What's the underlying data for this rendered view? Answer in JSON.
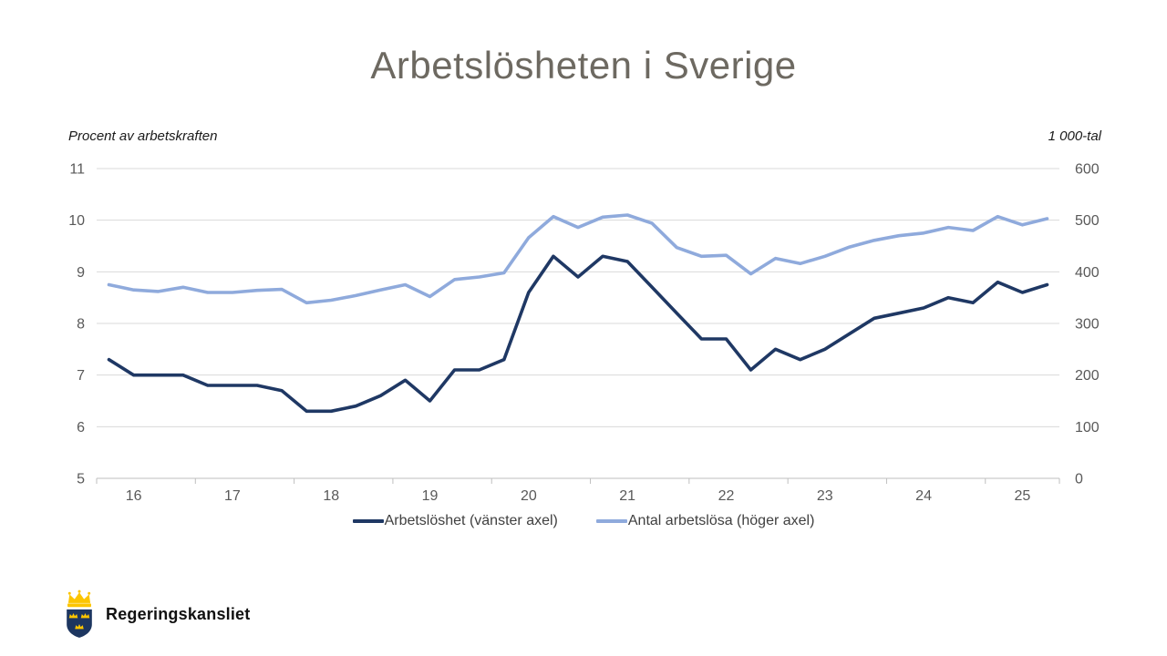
{
  "slide": {
    "title": "Arbetslösheten i Sverige",
    "left_axis_unit": "Procent av arbetskraften",
    "right_axis_unit": "1 000-tal",
    "footer_org": "Regeringskansliet"
  },
  "colors": {
    "series_unemployment_rate": "#1f3864",
    "series_unemployed_count": "#8faadc",
    "title_text": "#6d6961",
    "axis_text": "#595959",
    "gridline": "#d9d9d9",
    "axis_line": "#bfbfbf",
    "logo_navy": "#1d3660",
    "logo_gold": "#fcc500"
  },
  "chart_data": {
    "type": "line",
    "title": "Arbetslösheten i Sverige",
    "grid": true,
    "legend_position": "bottom",
    "x": [
      "2015-Q4",
      "2016-Q1",
      "2016-Q2",
      "2016-Q3",
      "2016-Q4",
      "2017-Q1",
      "2017-Q2",
      "2017-Q3",
      "2017-Q4",
      "2018-Q1",
      "2018-Q2",
      "2018-Q3",
      "2018-Q4",
      "2019-Q1",
      "2019-Q2",
      "2019-Q3",
      "2019-Q4",
      "2020-Q1",
      "2020-Q2",
      "2020-Q3",
      "2020-Q4",
      "2021-Q1",
      "2021-Q2",
      "2021-Q3",
      "2021-Q4",
      "2022-Q1",
      "2022-Q2",
      "2022-Q3",
      "2022-Q4",
      "2023-Q1",
      "2023-Q2",
      "2023-Q3",
      "2023-Q4",
      "2024-Q1",
      "2024-Q2",
      "2024-Q3",
      "2024-Q4",
      "2025-Q1",
      "2025-Q2"
    ],
    "x_year_tick_labels": [
      "16",
      "17",
      "18",
      "19",
      "20",
      "21",
      "22",
      "23",
      "24",
      "25"
    ],
    "x_label_start_index": 1,
    "x_label_every": 4,
    "left_axis": {
      "label": "Procent av arbetskraften",
      "min": 5,
      "max": 11,
      "ticks": [
        5,
        6,
        7,
        8,
        9,
        10,
        11
      ]
    },
    "right_axis": {
      "label": "1 000-tal",
      "min": 0,
      "max": 600,
      "ticks": [
        0,
        100,
        200,
        300,
        400,
        500,
        600
      ]
    },
    "series": [
      {
        "name": "Arbetslöshet (vänster axel)",
        "axis": "left",
        "color": "#1f3864",
        "values": [
          7.3,
          7.0,
          7.0,
          7.0,
          6.8,
          6.8,
          6.8,
          6.7,
          6.3,
          6.3,
          6.4,
          6.6,
          6.9,
          6.5,
          7.1,
          7.1,
          7.3,
          8.6,
          9.3,
          8.9,
          9.3,
          9.2,
          8.7,
          8.2,
          7.7,
          7.7,
          7.1,
          7.5,
          7.3,
          7.5,
          7.8,
          8.1,
          8.2,
          8.3,
          8.5,
          8.4,
          8.8,
          8.6,
          8.75
        ]
      },
      {
        "name": "Antal arbetslösa (höger axel)",
        "axis": "right",
        "color": "#8faadc",
        "values": [
          375,
          365,
          362,
          370,
          360,
          360,
          364,
          366,
          340,
          345,
          354,
          365,
          375,
          352,
          385,
          390,
          398,
          466,
          507,
          486,
          506,
          510,
          494,
          447,
          430,
          432,
          396,
          426,
          416,
          430,
          448,
          461,
          470,
          475,
          486,
          480,
          507,
          491,
          503
        ]
      }
    ]
  }
}
